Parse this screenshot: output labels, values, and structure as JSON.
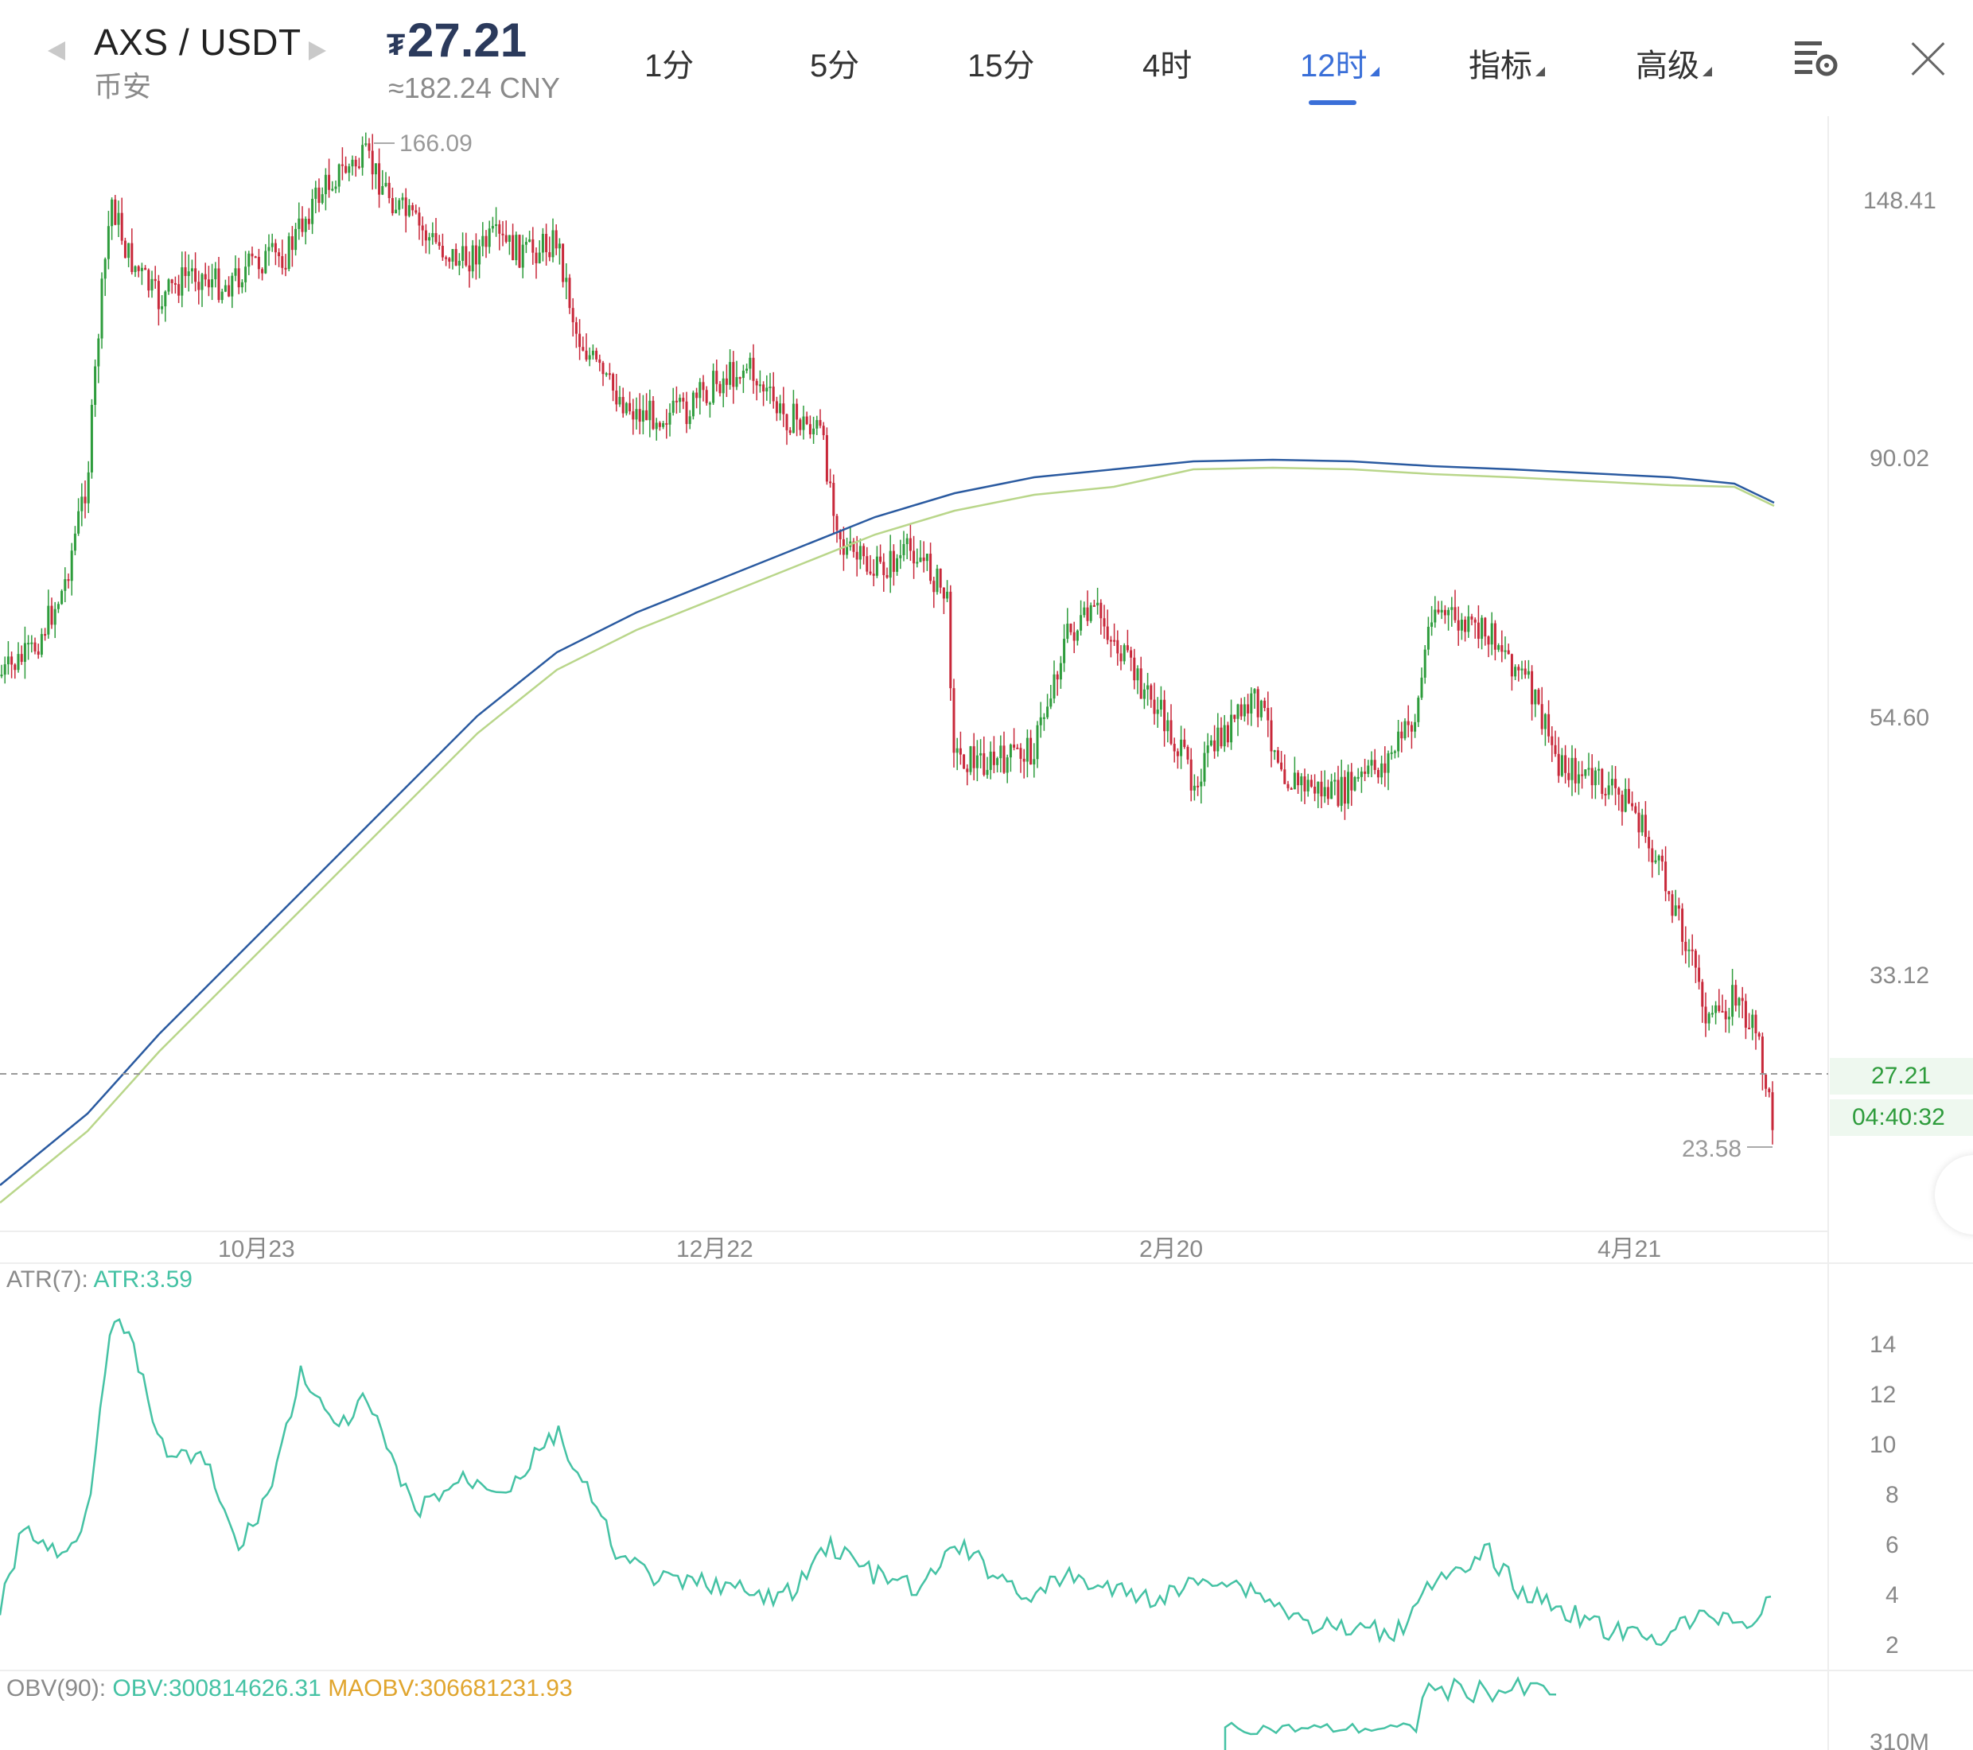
{
  "header": {
    "pair": "AXS / USDT",
    "exchange": "币安",
    "price_symbol": "₮",
    "price": "27.21",
    "price_cny": "≈182.24 CNY",
    "timeframes": [
      "1分",
      "5分",
      "15分",
      "4时",
      "12时",
      "指标",
      "高级"
    ],
    "active_timeframe": "12时"
  },
  "main_chart": {
    "high_marker": "166.09",
    "low_marker": "23.58",
    "y_labels": [
      "148.41",
      "90.02",
      "54.60",
      "33.12"
    ],
    "current_price": "27.21",
    "countdown": "04:40:32",
    "x_labels": [
      "10月23",
      "12月22",
      "2月20",
      "4月21"
    ],
    "colors": {
      "up": "#2e9c3c",
      "down": "#c8283a",
      "ma_fast": "#2a5aa0",
      "ma_slow": "#b9d68a"
    }
  },
  "atr_panel": {
    "label": "ATR(7):",
    "value": "ATR:3.59",
    "y_labels": [
      "14",
      "12",
      "10",
      "8",
      "6",
      "4",
      "2"
    ],
    "color": "#45c2a4"
  },
  "obv_panel": {
    "label": "OBV(90):",
    "obv": "OBV:300814626.31",
    "maobv": "MAOBV:306681231.93",
    "y_label": "310M"
  }
}
